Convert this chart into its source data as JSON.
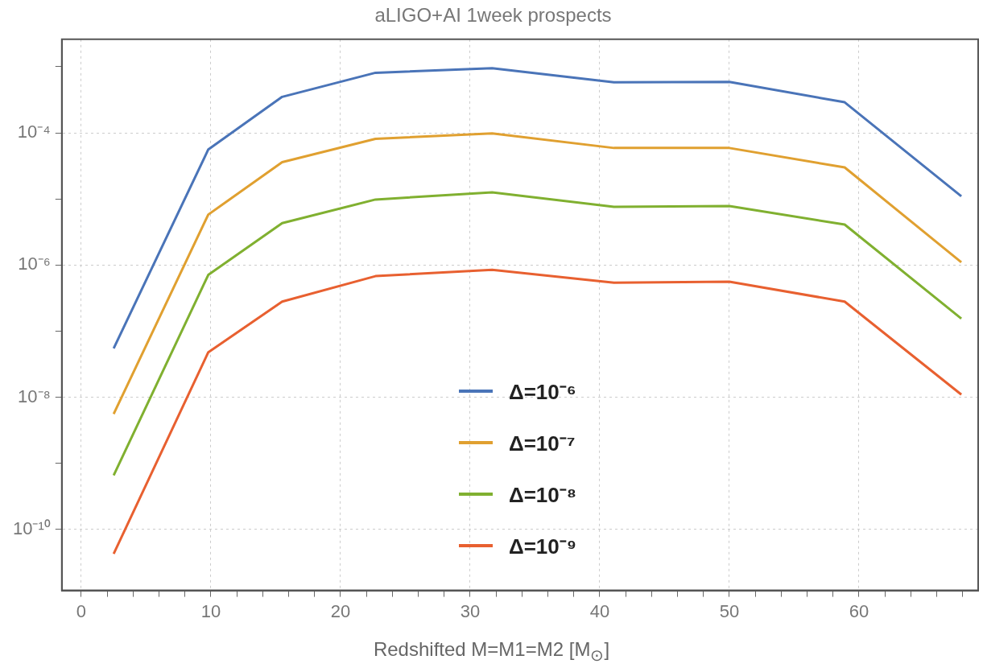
{
  "chart_data": {
    "type": "line",
    "title": "aLIGO+AI 1week prospects",
    "xlabel": "Redshifted M=M1=M2 [M$_{⊙}$]",
    "x": [
      2.5,
      9.8,
      15.5,
      22.7,
      31.7,
      41.1,
      50,
      58.9,
      67.9
    ],
    "series": [
      {
        "name": "Δ=10⁻⁶",
        "color": "#4a74b8",
        "values": [
          5.5e-08,
          5.6e-05,
          0.00035,
          0.00081,
          0.00095,
          0.00058,
          0.00059,
          0.00029,
          1.1e-05
        ]
      },
      {
        "name": "Δ=10⁻⁷",
        "color": "#e0a030",
        "values": [
          5.6e-09,
          5.8e-06,
          3.6e-05,
          8.1e-05,
          9.8e-05,
          5.9e-05,
          5.9e-05,
          3e-05,
          1.1e-06
        ]
      },
      {
        "name": "Δ=10⁻⁸",
        "color": "#80b030",
        "values": [
          6.6e-10,
          7.1e-07,
          4.3e-06,
          9.8e-06,
          1.26e-05,
          7.6e-06,
          7.8e-06,
          4.1e-06,
          1.55e-07
        ]
      },
      {
        "name": "Δ=10⁻⁹",
        "color": "#e86030",
        "values": [
          4.3e-11,
          4.8e-08,
          2.8e-07,
          6.8e-07,
          8.5e-07,
          5.4e-07,
          5.6e-07,
          2.8e-07,
          1.1e-08
        ]
      }
    ],
    "xlim": [
      -1.5,
      69.2
    ],
    "xticks": [
      0,
      {
        "value": 2,
        "label": null
      },
      {
        "value": 4,
        "label": null
      },
      {
        "value": 6,
        "label": null
      },
      {
        "value": 8,
        "label": null
      },
      10,
      {
        "value": 12,
        "label": null
      },
      {
        "value": 14,
        "label": null
      },
      {
        "value": 16,
        "label": null
      },
      {
        "value": 18,
        "label": null
      },
      20,
      {
        "value": 22,
        "label": null
      },
      {
        "value": 24,
        "label": null
      },
      {
        "value": 26,
        "label": null
      },
      {
        "value": 28,
        "label": null
      },
      30,
      {
        "value": 32,
        "label": null
      },
      {
        "value": 34,
        "label": null
      },
      {
        "value": 36,
        "label": null
      },
      {
        "value": 38,
        "label": null
      },
      40,
      {
        "value": 42,
        "label": null
      },
      {
        "value": 44,
        "label": null
      },
      {
        "value": 46,
        "label": null
      },
      {
        "value": 48,
        "label": null
      },
      50,
      {
        "value": 52,
        "label": null
      },
      {
        "value": 54,
        "label": null
      },
      {
        "value": 56,
        "label": null
      },
      {
        "value": 58,
        "label": null
      },
      60,
      {
        "value": 62,
        "label": null
      },
      {
        "value": 64,
        "label": null
      },
      {
        "value": 66,
        "label": null
      },
      {
        "value": 68,
        "label": null
      }
    ],
    "ylim": [
      1.2e-11,
      0.0026
    ],
    "yticks": [
      {
        "value": 1e-10,
        "label": "10⁻¹⁰"
      },
      {
        "value": 1e-09,
        "label": null
      },
      {
        "value": 1e-08,
        "label": "10⁻⁸"
      },
      {
        "value": 1e-07,
        "label": null
      },
      {
        "value": 1e-06,
        "label": "10⁻⁶"
      },
      {
        "value": 1e-05,
        "label": null
      },
      {
        "value": 0.0001,
        "label": "10⁻⁴"
      },
      {
        "value": 0.001,
        "label": null
      }
    ],
    "log": "y",
    "grid": true,
    "legend": "bottom",
    "marker": "none",
    "line_style": "solid"
  }
}
